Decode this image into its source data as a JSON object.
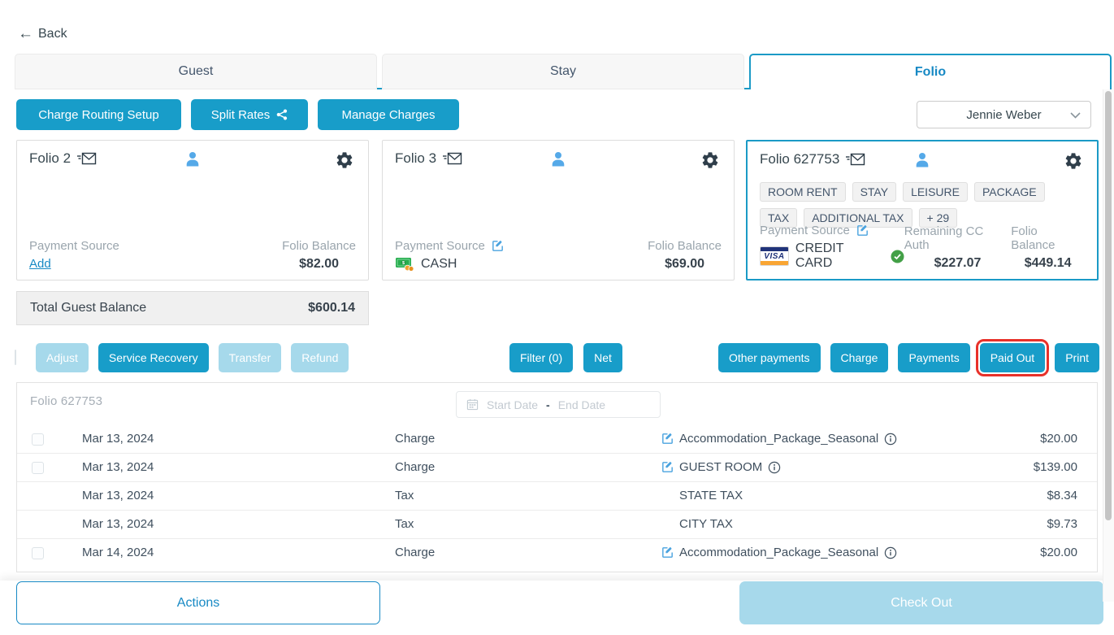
{
  "header": {
    "back_label": "Back"
  },
  "tabs": [
    {
      "label": "Guest",
      "active": false
    },
    {
      "label": "Stay",
      "active": false
    },
    {
      "label": "Folio",
      "active": true
    }
  ],
  "toolbar": {
    "charge_routing_label": "Charge Routing Setup",
    "split_rates_label": "Split Rates",
    "manage_charges_label": "Manage Charges",
    "guest_selector_value": "Jennie Weber"
  },
  "folios": [
    {
      "title": "Folio 2",
      "payment_source_label": "Payment Source",
      "payment_add_label": "Add",
      "balance_label": "Folio Balance",
      "balance": "$82.00"
    },
    {
      "title": "Folio 3",
      "payment_source_label": "Payment Source",
      "payment_method": "CASH",
      "balance_label": "Folio Balance",
      "balance": "$69.00"
    },
    {
      "title": "Folio 627753",
      "tags": [
        "ROOM RENT",
        "STAY",
        "LEISURE",
        "PACKAGE",
        "TAX",
        "ADDITIONAL TAX",
        "+ 29"
      ],
      "payment_source_label": "Payment Source",
      "payment_method": "CREDIT CARD",
      "card_brand": "VISA",
      "cc_auth_label": "Remaining CC Auth",
      "cc_auth": "$227.07",
      "balance_label": "Folio Balance",
      "balance": "$449.14"
    }
  ],
  "total_balance": {
    "label": "Total Guest Balance",
    "value": "$600.14"
  },
  "actions_bar": {
    "left": [
      {
        "label": "Adjust",
        "enabled": false
      },
      {
        "label": "Service Recovery",
        "enabled": true
      },
      {
        "label": "Transfer",
        "enabled": false
      },
      {
        "label": "Refund",
        "enabled": false
      }
    ],
    "middle": [
      {
        "label": "Filter (0)",
        "enabled": true
      },
      {
        "label": "Net",
        "enabled": true
      }
    ],
    "right": [
      {
        "label": "Other payments",
        "enabled": true
      },
      {
        "label": "Charge",
        "enabled": true
      },
      {
        "label": "Payments",
        "enabled": true
      },
      {
        "label": "Paid Out",
        "enabled": true,
        "highlighted": true
      },
      {
        "label": "Print",
        "enabled": true
      }
    ]
  },
  "table": {
    "folio_label": "Folio 627753",
    "date_filter": {
      "start_placeholder": "Start Date",
      "separator": "-",
      "end_placeholder": "End Date"
    },
    "rows": [
      {
        "date": "Mar 13, 2024",
        "type": "Charge",
        "description": "Accommodation_Package_Seasonal",
        "amount": "$20.00",
        "checkbox": true,
        "editable": true,
        "info": true
      },
      {
        "date": "Mar 13, 2024",
        "type": "Charge",
        "description": "GUEST ROOM",
        "amount": "$139.00",
        "checkbox": true,
        "editable": true,
        "info": true
      },
      {
        "date": "Mar 13, 2024",
        "type": "Tax",
        "description": "STATE TAX",
        "amount": "$8.34",
        "checkbox": false,
        "editable": false,
        "info": false
      },
      {
        "date": "Mar 13, 2024",
        "type": "Tax",
        "description": "CITY TAX",
        "amount": "$9.73",
        "checkbox": false,
        "editable": false,
        "info": false
      },
      {
        "date": "Mar 14, 2024",
        "type": "Charge",
        "description": "Accommodation_Package_Seasonal",
        "amount": "$20.00",
        "checkbox": true,
        "editable": true,
        "info": true
      }
    ]
  },
  "footer": {
    "actions_label": "Actions",
    "checkout_label": "Check Out"
  },
  "colors": {
    "primary": "#189dc9",
    "primary_disabled": "#a6d9eb",
    "accent_link": "#1789c4",
    "highlight_red": "#e8312a",
    "check_green": "#43a047",
    "person_blue": "#55a9e8",
    "cash_green": "#27ae4e",
    "visa_blue": "#20337a",
    "visa_orange": "#f9a533"
  }
}
